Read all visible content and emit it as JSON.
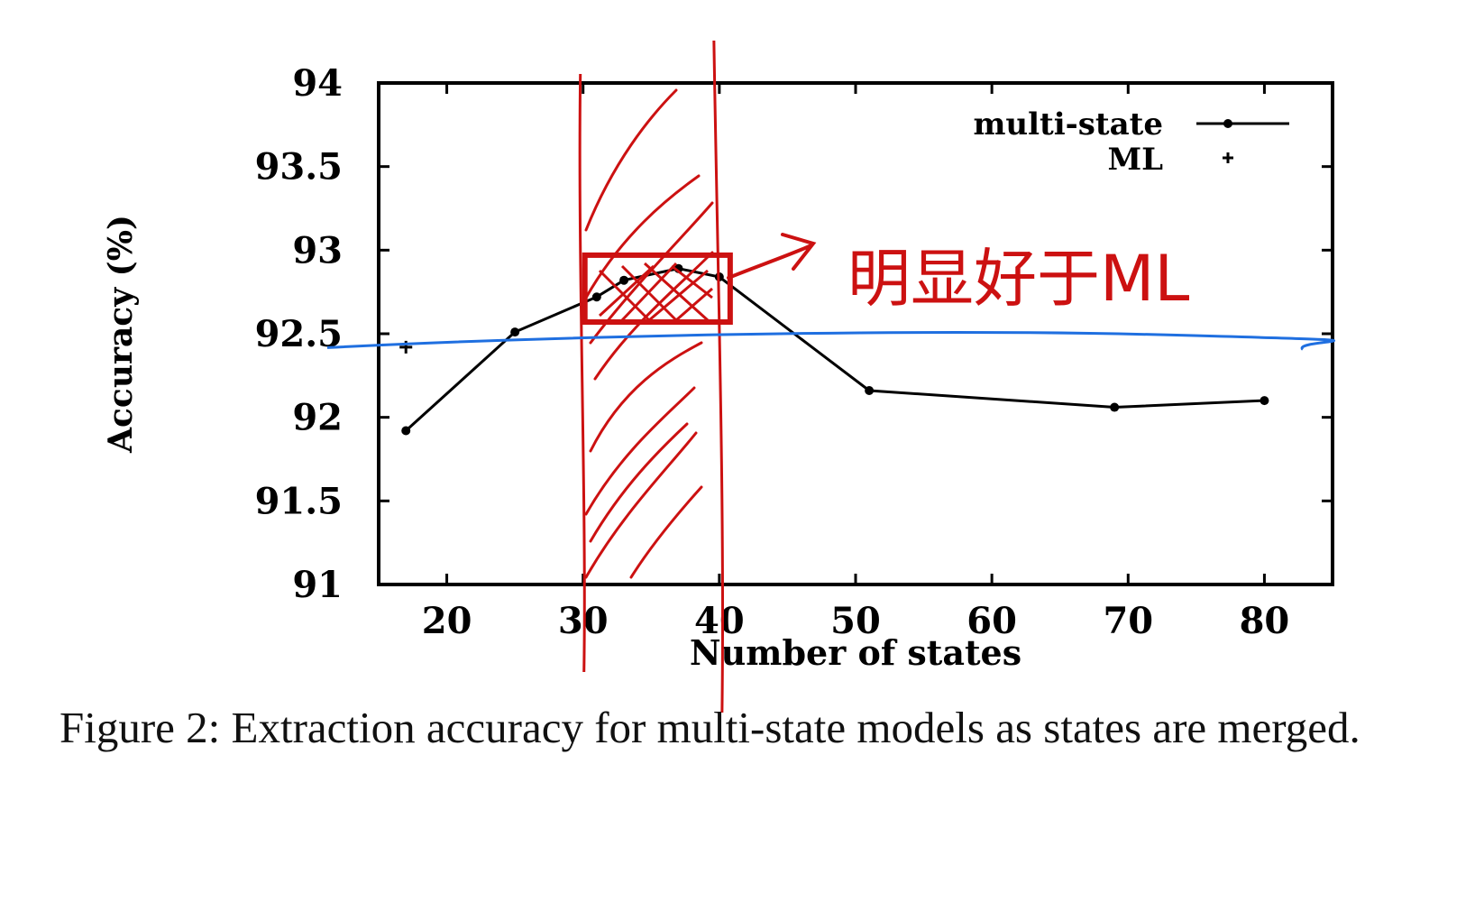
{
  "chart_data": {
    "type": "line",
    "xlabel": "Number of states",
    "ylabel": "Accuracy (%)",
    "xlim": [
      15,
      85
    ],
    "ylim": [
      91,
      94
    ],
    "x_ticks": [
      20,
      30,
      40,
      50,
      60,
      70,
      80
    ],
    "y_ticks": [
      91,
      91.5,
      92,
      92.5,
      93,
      93.5,
      94
    ],
    "y_tick_labels": [
      "91",
      "91.5",
      "92",
      "92.5",
      "93",
      "93.5",
      "94"
    ],
    "legend_position": "top-right",
    "series": [
      {
        "name": "multi-state",
        "style": "line-with-dots",
        "x": [
          17,
          25,
          31,
          33,
          37,
          40,
          51,
          69,
          80
        ],
        "y": [
          91.92,
          92.51,
          92.72,
          92.82,
          92.89,
          92.84,
          92.16,
          92.06,
          92.1
        ]
      },
      {
        "name": "ML",
        "style": "plus-point",
        "x": [
          17
        ],
        "y": [
          92.42
        ]
      }
    ],
    "grid": false
  },
  "caption": "Figure 2:  Extraction accuracy for multi-state models as states are merged.",
  "annotation": {
    "handwritten_text": "明显好于ML",
    "color": "#cc1111",
    "highlight_x_range": [
      30,
      40
    ],
    "highlight_box_y": [
      92.57,
      92.97
    ],
    "reference_line_y": 92.46,
    "reference_line_color": "#1f6fe0"
  }
}
